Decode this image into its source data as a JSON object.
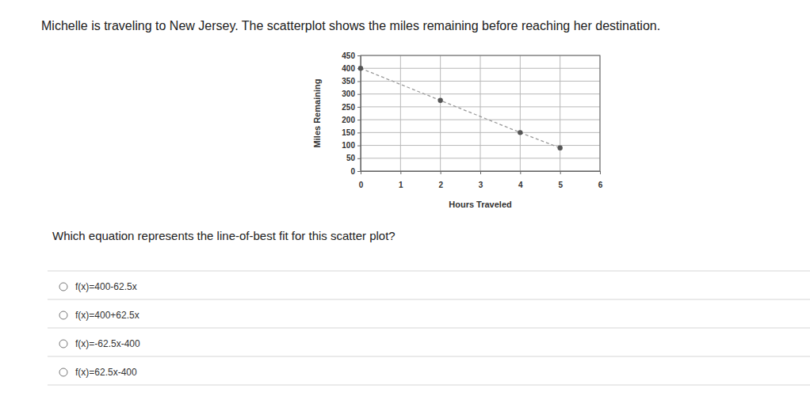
{
  "header": "Michelle is traveling to New Jersey. The scatterplot shows the miles remaining before reaching her destination.",
  "question": "Which equation represents the line-of-best fit for this scatter plot?",
  "options": [
    "f(x)=400-62.5x",
    "f(x)=400+62.5x",
    "f(x)=-62.5x-400",
    "f(x)=62.5x-400"
  ],
  "chart_data": {
    "type": "scatter",
    "x_label": "Hours Traveled",
    "y_label": "Miles Remaining",
    "x": [
      0,
      2,
      4,
      5
    ],
    "values": [
      400,
      275,
      150,
      90
    ],
    "xlim": [
      0,
      6
    ],
    "xticks": [
      0,
      1,
      2,
      3,
      4,
      5,
      6
    ],
    "ylim": [
      0,
      450
    ],
    "yticks": [
      0,
      50,
      100,
      150,
      200,
      250,
      300,
      350,
      400,
      450
    ],
    "grid": true,
    "color": "#555555",
    "marker": "circle",
    "line_style": "dashed"
  }
}
